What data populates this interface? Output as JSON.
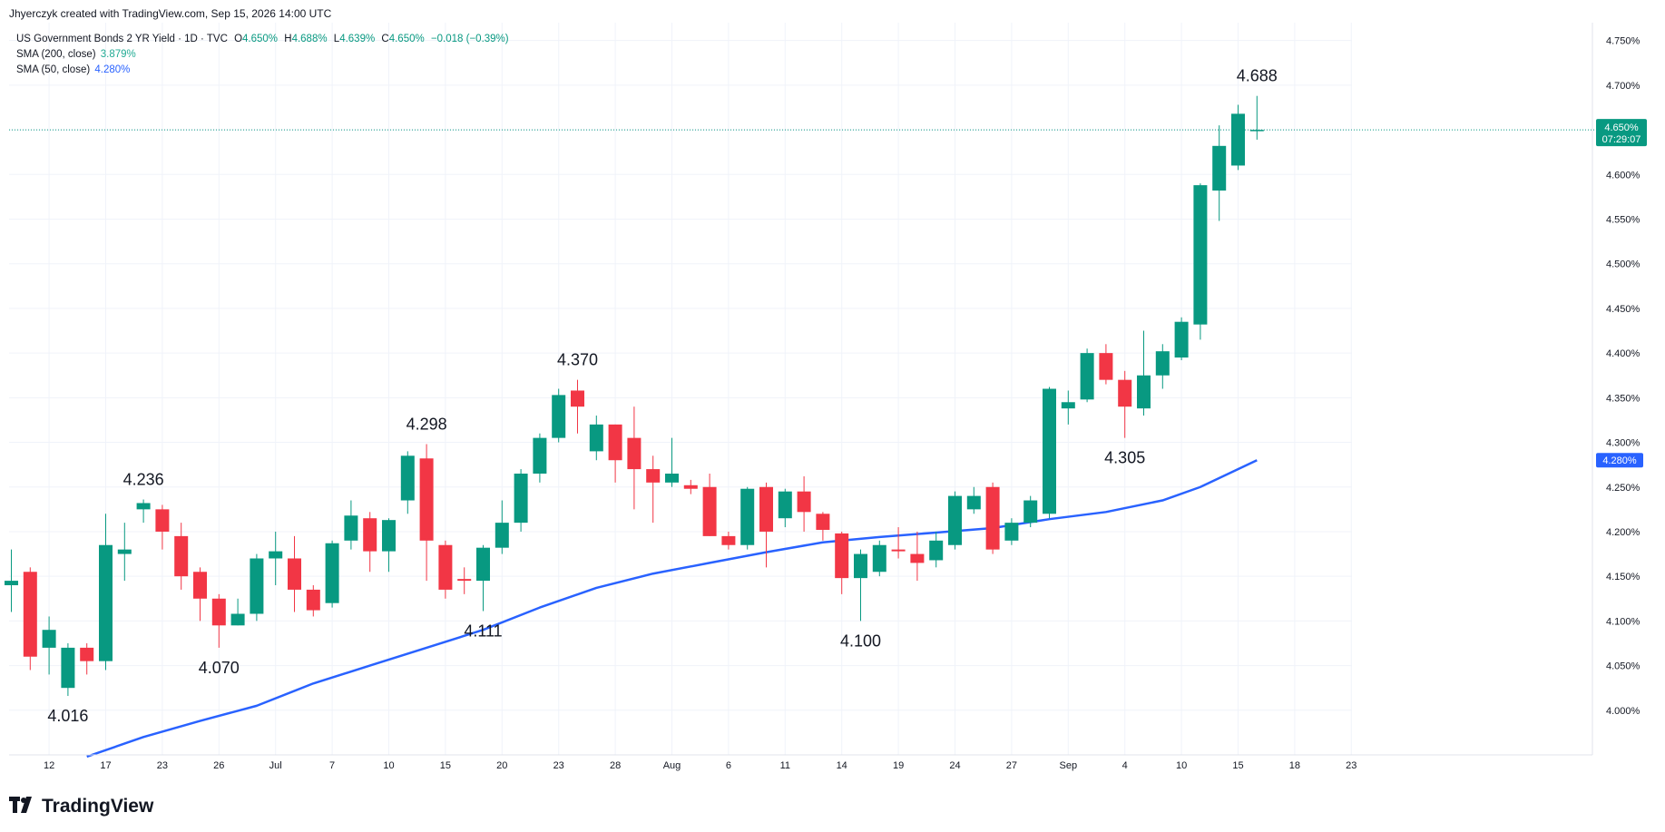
{
  "header": {
    "author_line": "Jhyerczyk created with TradingView.com, Sep 15, 2026 14:00 UTC"
  },
  "legend": {
    "symbol": "US Government Bonds 2 YR Yield · 1D · TVC",
    "o_label": "O",
    "o_value": "4.650%",
    "h_label": "H",
    "h_value": "4.688%",
    "l_label": "L",
    "l_value": "4.639%",
    "c_label": "C",
    "c_value": "4.650%",
    "change": "−0.018 (−0.39%)",
    "sma200_label": "SMA (200, close)",
    "sma200_value": "3.879%",
    "sma50_label": "SMA (50, close)",
    "sma50_value": "4.280%"
  },
  "price_tag": {
    "value": "4.650%",
    "countdown": "07:29:07"
  },
  "sma_tag": {
    "value": "4.280%"
  },
  "footer": {
    "brand": "TradingView",
    "logo_icon": "tradingview-logo-icon"
  },
  "colors": {
    "up": "#089981",
    "down": "#f23645",
    "sma50": "#2962ff",
    "grid": "#f0f3fa"
  },
  "chart_data": {
    "type": "candlestick",
    "y_range": [
      3.95,
      4.77
    ],
    "y_ticks": [
      4.0,
      4.05,
      4.1,
      4.15,
      4.2,
      4.25,
      4.3,
      4.35,
      4.4,
      4.45,
      4.5,
      4.55,
      4.6,
      4.65,
      4.7,
      4.75
    ],
    "y_tick_labels": [
      "4.000%",
      "4.050%",
      "4.100%",
      "4.150%",
      "4.200%",
      "4.250%",
      "4.300%",
      "4.350%",
      "4.400%",
      "4.450%",
      "4.500%",
      "4.550%",
      "4.600%",
      "4.650%",
      "4.700%",
      "4.750%"
    ],
    "x_ticks": [
      {
        "i": 2,
        "label": "12"
      },
      {
        "i": 5,
        "label": "17"
      },
      {
        "i": 8,
        "label": "23"
      },
      {
        "i": 11,
        "label": "26"
      },
      {
        "i": 14,
        "label": "Jul"
      },
      {
        "i": 17,
        "label": "7"
      },
      {
        "i": 20,
        "label": "10"
      },
      {
        "i": 23,
        "label": "15"
      },
      {
        "i": 26,
        "label": "20"
      },
      {
        "i": 29,
        "label": "23"
      },
      {
        "i": 32,
        "label": "28"
      },
      {
        "i": 35,
        "label": "Aug"
      },
      {
        "i": 38,
        "label": "6"
      },
      {
        "i": 41,
        "label": "11"
      },
      {
        "i": 44,
        "label": "14"
      },
      {
        "i": 47,
        "label": "19"
      },
      {
        "i": 50,
        "label": "24"
      },
      {
        "i": 53,
        "label": "27"
      },
      {
        "i": 56,
        "label": "Sep"
      },
      {
        "i": 59,
        "label": "4"
      },
      {
        "i": 62,
        "label": "10"
      },
      {
        "i": 65,
        "label": "15"
      },
      {
        "i": 68,
        "label": "18"
      },
      {
        "i": 71,
        "label": "23"
      }
    ],
    "candles": [
      {
        "o": 4.14,
        "h": 4.18,
        "l": 4.11,
        "c": 4.145
      },
      {
        "o": 4.155,
        "h": 4.16,
        "l": 4.045,
        "c": 4.06
      },
      {
        "o": 4.07,
        "h": 4.105,
        "l": 4.04,
        "c": 4.09
      },
      {
        "o": 4.025,
        "h": 4.075,
        "l": 4.016,
        "c": 4.07
      },
      {
        "o": 4.07,
        "h": 4.075,
        "l": 4.04,
        "c": 4.055
      },
      {
        "o": 4.055,
        "h": 4.22,
        "l": 4.045,
        "c": 4.185
      },
      {
        "o": 4.175,
        "h": 4.21,
        "l": 4.145,
        "c": 4.18
      },
      {
        "o": 4.225,
        "h": 4.236,
        "l": 4.21,
        "c": 4.232
      },
      {
        "o": 4.225,
        "h": 4.23,
        "l": 4.18,
        "c": 4.2
      },
      {
        "o": 4.195,
        "h": 4.21,
        "l": 4.135,
        "c": 4.15
      },
      {
        "o": 4.155,
        "h": 4.16,
        "l": 4.1,
        "c": 4.125
      },
      {
        "o": 4.125,
        "h": 4.13,
        "l": 4.07,
        "c": 4.095
      },
      {
        "o": 4.095,
        "h": 4.125,
        "l": 4.095,
        "c": 4.108
      },
      {
        "o": 4.108,
        "h": 4.175,
        "l": 4.1,
        "c": 4.17
      },
      {
        "o": 4.17,
        "h": 4.2,
        "l": 4.14,
        "c": 4.178
      },
      {
        "o": 4.17,
        "h": 4.195,
        "l": 4.11,
        "c": 4.135
      },
      {
        "o": 4.135,
        "h": 4.14,
        "l": 4.105,
        "c": 4.112
      },
      {
        "o": 4.12,
        "h": 4.19,
        "l": 4.115,
        "c": 4.187
      },
      {
        "o": 4.19,
        "h": 4.235,
        "l": 4.18,
        "c": 4.218
      },
      {
        "o": 4.215,
        "h": 4.222,
        "l": 4.155,
        "c": 4.178
      },
      {
        "o": 4.178,
        "h": 4.215,
        "l": 4.155,
        "c": 4.213
      },
      {
        "o": 4.235,
        "h": 4.29,
        "l": 4.22,
        "c": 4.285
      },
      {
        "o": 4.282,
        "h": 4.298,
        "l": 4.145,
        "c": 4.19
      },
      {
        "o": 4.185,
        "h": 4.19,
        "l": 4.125,
        "c": 4.135
      },
      {
        "o": 4.147,
        "h": 4.16,
        "l": 4.13,
        "c": 4.145
      },
      {
        "o": 4.145,
        "h": 4.185,
        "l": 4.111,
        "c": 4.182
      },
      {
        "o": 4.182,
        "h": 4.235,
        "l": 4.175,
        "c": 4.21
      },
      {
        "o": 4.21,
        "h": 4.27,
        "l": 4.2,
        "c": 4.265
      },
      {
        "o": 4.265,
        "h": 4.31,
        "l": 4.255,
        "c": 4.305
      },
      {
        "o": 4.305,
        "h": 4.36,
        "l": 4.3,
        "c": 4.353
      },
      {
        "o": 4.358,
        "h": 4.37,
        "l": 4.31,
        "c": 4.34
      },
      {
        "o": 4.29,
        "h": 4.33,
        "l": 4.28,
        "c": 4.32
      },
      {
        "o": 4.32,
        "h": 4.32,
        "l": 4.255,
        "c": 4.28
      },
      {
        "o": 4.305,
        "h": 4.34,
        "l": 4.225,
        "c": 4.27
      },
      {
        "o": 4.27,
        "h": 4.285,
        "l": 4.21,
        "c": 4.255
      },
      {
        "o": 4.255,
        "h": 4.305,
        "l": 4.25,
        "c": 4.265
      },
      {
        "o": 4.252,
        "h": 4.258,
        "l": 4.242,
        "c": 4.248
      },
      {
        "o": 4.25,
        "h": 4.265,
        "l": 4.195,
        "c": 4.195
      },
      {
        "o": 4.195,
        "h": 4.2,
        "l": 4.18,
        "c": 4.185
      },
      {
        "o": 4.185,
        "h": 4.25,
        "l": 4.18,
        "c": 4.248
      },
      {
        "o": 4.25,
        "h": 4.255,
        "l": 4.16,
        "c": 4.2
      },
      {
        "o": 4.215,
        "h": 4.248,
        "l": 4.205,
        "c": 4.245
      },
      {
        "o": 4.245,
        "h": 4.262,
        "l": 4.2,
        "c": 4.222
      },
      {
        "o": 4.22,
        "h": 4.222,
        "l": 4.19,
        "c": 4.202
      },
      {
        "o": 4.198,
        "h": 4.2,
        "l": 4.13,
        "c": 4.148
      },
      {
        "o": 4.148,
        "h": 4.18,
        "l": 4.1,
        "c": 4.175
      },
      {
        "o": 4.155,
        "h": 4.19,
        "l": 4.15,
        "c": 4.185
      },
      {
        "o": 4.18,
        "h": 4.205,
        "l": 4.17,
        "c": 4.178
      },
      {
        "o": 4.175,
        "h": 4.2,
        "l": 4.145,
        "c": 4.165
      },
      {
        "o": 4.168,
        "h": 4.2,
        "l": 4.16,
        "c": 4.19
      },
      {
        "o": 4.185,
        "h": 4.245,
        "l": 4.18,
        "c": 4.24
      },
      {
        "o": 4.225,
        "h": 4.25,
        "l": 4.22,
        "c": 4.24
      },
      {
        "o": 4.25,
        "h": 4.255,
        "l": 4.175,
        "c": 4.18
      },
      {
        "o": 4.19,
        "h": 4.215,
        "l": 4.185,
        "c": 4.21
      },
      {
        "o": 4.21,
        "h": 4.24,
        "l": 4.205,
        "c": 4.235
      },
      {
        "o": 4.22,
        "h": 4.362,
        "l": 4.215,
        "c": 4.36
      },
      {
        "o": 4.338,
        "h": 4.358,
        "l": 4.32,
        "c": 4.345
      },
      {
        "o": 4.348,
        "h": 4.405,
        "l": 4.345,
        "c": 4.4
      },
      {
        "o": 4.4,
        "h": 4.41,
        "l": 4.365,
        "c": 4.37
      },
      {
        "o": 4.37,
        "h": 4.38,
        "l": 4.305,
        "c": 4.34
      },
      {
        "o": 4.338,
        "h": 4.425,
        "l": 4.33,
        "c": 4.375
      },
      {
        "o": 4.375,
        "h": 4.41,
        "l": 4.36,
        "c": 4.402
      },
      {
        "o": 4.395,
        "h": 4.44,
        "l": 4.392,
        "c": 4.435
      },
      {
        "o": 4.432,
        "h": 4.59,
        "l": 4.415,
        "c": 4.588
      },
      {
        "o": 4.582,
        "h": 4.655,
        "l": 4.548,
        "c": 4.632
      },
      {
        "o": 4.61,
        "h": 4.678,
        "l": 4.605,
        "c": 4.668
      },
      {
        "o": 4.65,
        "h": 4.688,
        "l": 4.639,
        "c": 4.65
      }
    ],
    "sma50": [
      {
        "i": 4,
        "v": 3.948
      },
      {
        "i": 7,
        "v": 3.97
      },
      {
        "i": 10,
        "v": 3.988
      },
      {
        "i": 13,
        "v": 4.005
      },
      {
        "i": 16,
        "v": 4.03
      },
      {
        "i": 19,
        "v": 4.05
      },
      {
        "i": 22,
        "v": 4.07
      },
      {
        "i": 25,
        "v": 4.09
      },
      {
        "i": 28,
        "v": 4.115
      },
      {
        "i": 31,
        "v": 4.137
      },
      {
        "i": 34,
        "v": 4.153
      },
      {
        "i": 37,
        "v": 4.165
      },
      {
        "i": 40,
        "v": 4.177
      },
      {
        "i": 43,
        "v": 4.188
      },
      {
        "i": 46,
        "v": 4.194
      },
      {
        "i": 49,
        "v": 4.199
      },
      {
        "i": 52,
        "v": 4.204
      },
      {
        "i": 55,
        "v": 4.214
      },
      {
        "i": 58,
        "v": 4.222
      },
      {
        "i": 61,
        "v": 4.235
      },
      {
        "i": 63,
        "v": 4.25
      },
      {
        "i": 66,
        "v": 4.28
      }
    ],
    "annotations": [
      {
        "i": 3,
        "text": "4.016",
        "pos": "below",
        "v": 4.016
      },
      {
        "i": 7,
        "text": "4.236",
        "pos": "above",
        "v": 4.236
      },
      {
        "i": 11,
        "text": "4.070",
        "pos": "below",
        "v": 4.07
      },
      {
        "i": 22,
        "text": "4.298",
        "pos": "above",
        "v": 4.298
      },
      {
        "i": 25,
        "text": "4.111",
        "pos": "below",
        "v": 4.111
      },
      {
        "i": 30,
        "text": "4.370",
        "pos": "above",
        "v": 4.37
      },
      {
        "i": 45,
        "text": "4.100",
        "pos": "below",
        "v": 4.1
      },
      {
        "i": 59,
        "text": "4.305",
        "pos": "below",
        "v": 4.305
      },
      {
        "i": 66,
        "text": "4.688",
        "pos": "above",
        "v": 4.688
      }
    ],
    "last_price": 4.65
  }
}
